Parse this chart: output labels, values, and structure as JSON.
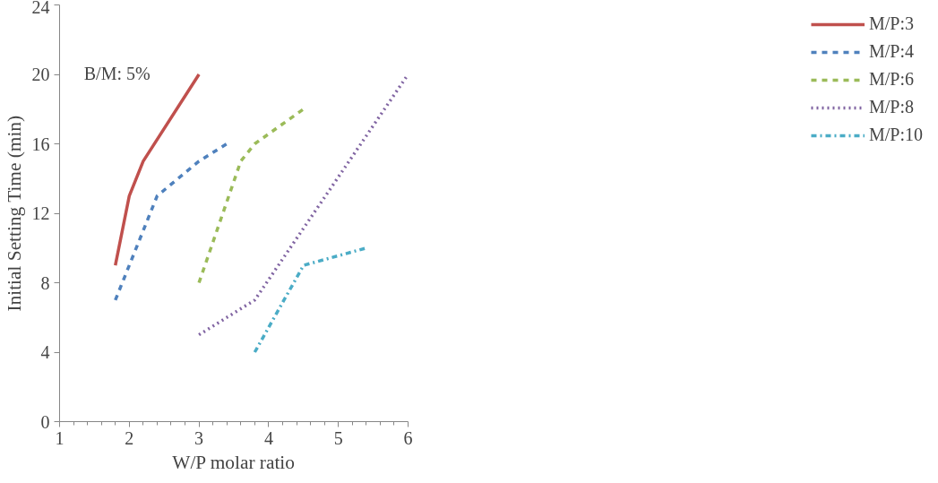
{
  "chart_data": {
    "type": "line",
    "xlabel": "W/P molar ratio",
    "ylabel": "Initial Setting Time (min)",
    "xlim": [
      1,
      6
    ],
    "ylim": [
      0,
      24
    ],
    "xticks": [
      1,
      {
        "value": 1.2,
        "label": null
      },
      {
        "value": 1.4,
        "label": null
      },
      {
        "value": 1.6,
        "label": null
      },
      {
        "value": 1.8,
        "label": null
      },
      2,
      {
        "value": 2.2,
        "label": null
      },
      {
        "value": 2.4,
        "label": null
      },
      {
        "value": 2.6,
        "label": null
      },
      {
        "value": 2.8,
        "label": null
      },
      3,
      {
        "value": 3.2,
        "label": null
      },
      {
        "value": 3.4,
        "label": null
      },
      {
        "value": 3.6,
        "label": null
      },
      {
        "value": 3.8,
        "label": null
      },
      4,
      {
        "value": 4.2,
        "label": null
      },
      {
        "value": 4.4,
        "label": null
      },
      {
        "value": 4.6,
        "label": null
      },
      {
        "value": 4.8,
        "label": null
      },
      5,
      {
        "value": 5.2,
        "label": null
      },
      {
        "value": 5.4,
        "label": null
      },
      {
        "value": 5.6,
        "label": null
      },
      {
        "value": 5.8,
        "label": null
      },
      6
    ],
    "yticks": [
      0,
      4,
      8,
      12,
      16,
      20,
      24
    ],
    "grid": false,
    "legend": "right",
    "marker": "none",
    "annotations": [
      "B/M: 5%"
    ],
    "series": [
      {
        "name": "M/P:3",
        "color": "#c0504d",
        "line_style": "solid",
        "x": [
          1.8,
          2.0,
          2.2,
          3.0
        ],
        "values": [
          9,
          13,
          15,
          20
        ]
      },
      {
        "name": "M/P:4",
        "color": "#4f81bd",
        "line_style": "dashed",
        "x": [
          1.8,
          2.0,
          2.2,
          2.4,
          3.0,
          3.4
        ],
        "values": [
          7,
          9,
          11,
          13,
          15,
          16
        ]
      },
      {
        "name": "M/P:6",
        "color": "#9bbb59",
        "line_style": "dashed",
        "x": [
          3.0,
          3.6,
          3.8,
          4.5
        ],
        "values": [
          8,
          15,
          16,
          18
        ]
      },
      {
        "name": "M/P:8",
        "color": "#8064a2",
        "line_style": "dotted",
        "x": [
          3.0,
          3.8,
          6.0
        ],
        "values": [
          5,
          7,
          20
        ]
      },
      {
        "name": "M/P:10",
        "color": "#4bacc6",
        "line_style": "dashdot",
        "x": [
          3.8,
          4.5,
          5.4
        ],
        "values": [
          4,
          9,
          10
        ]
      }
    ]
  }
}
